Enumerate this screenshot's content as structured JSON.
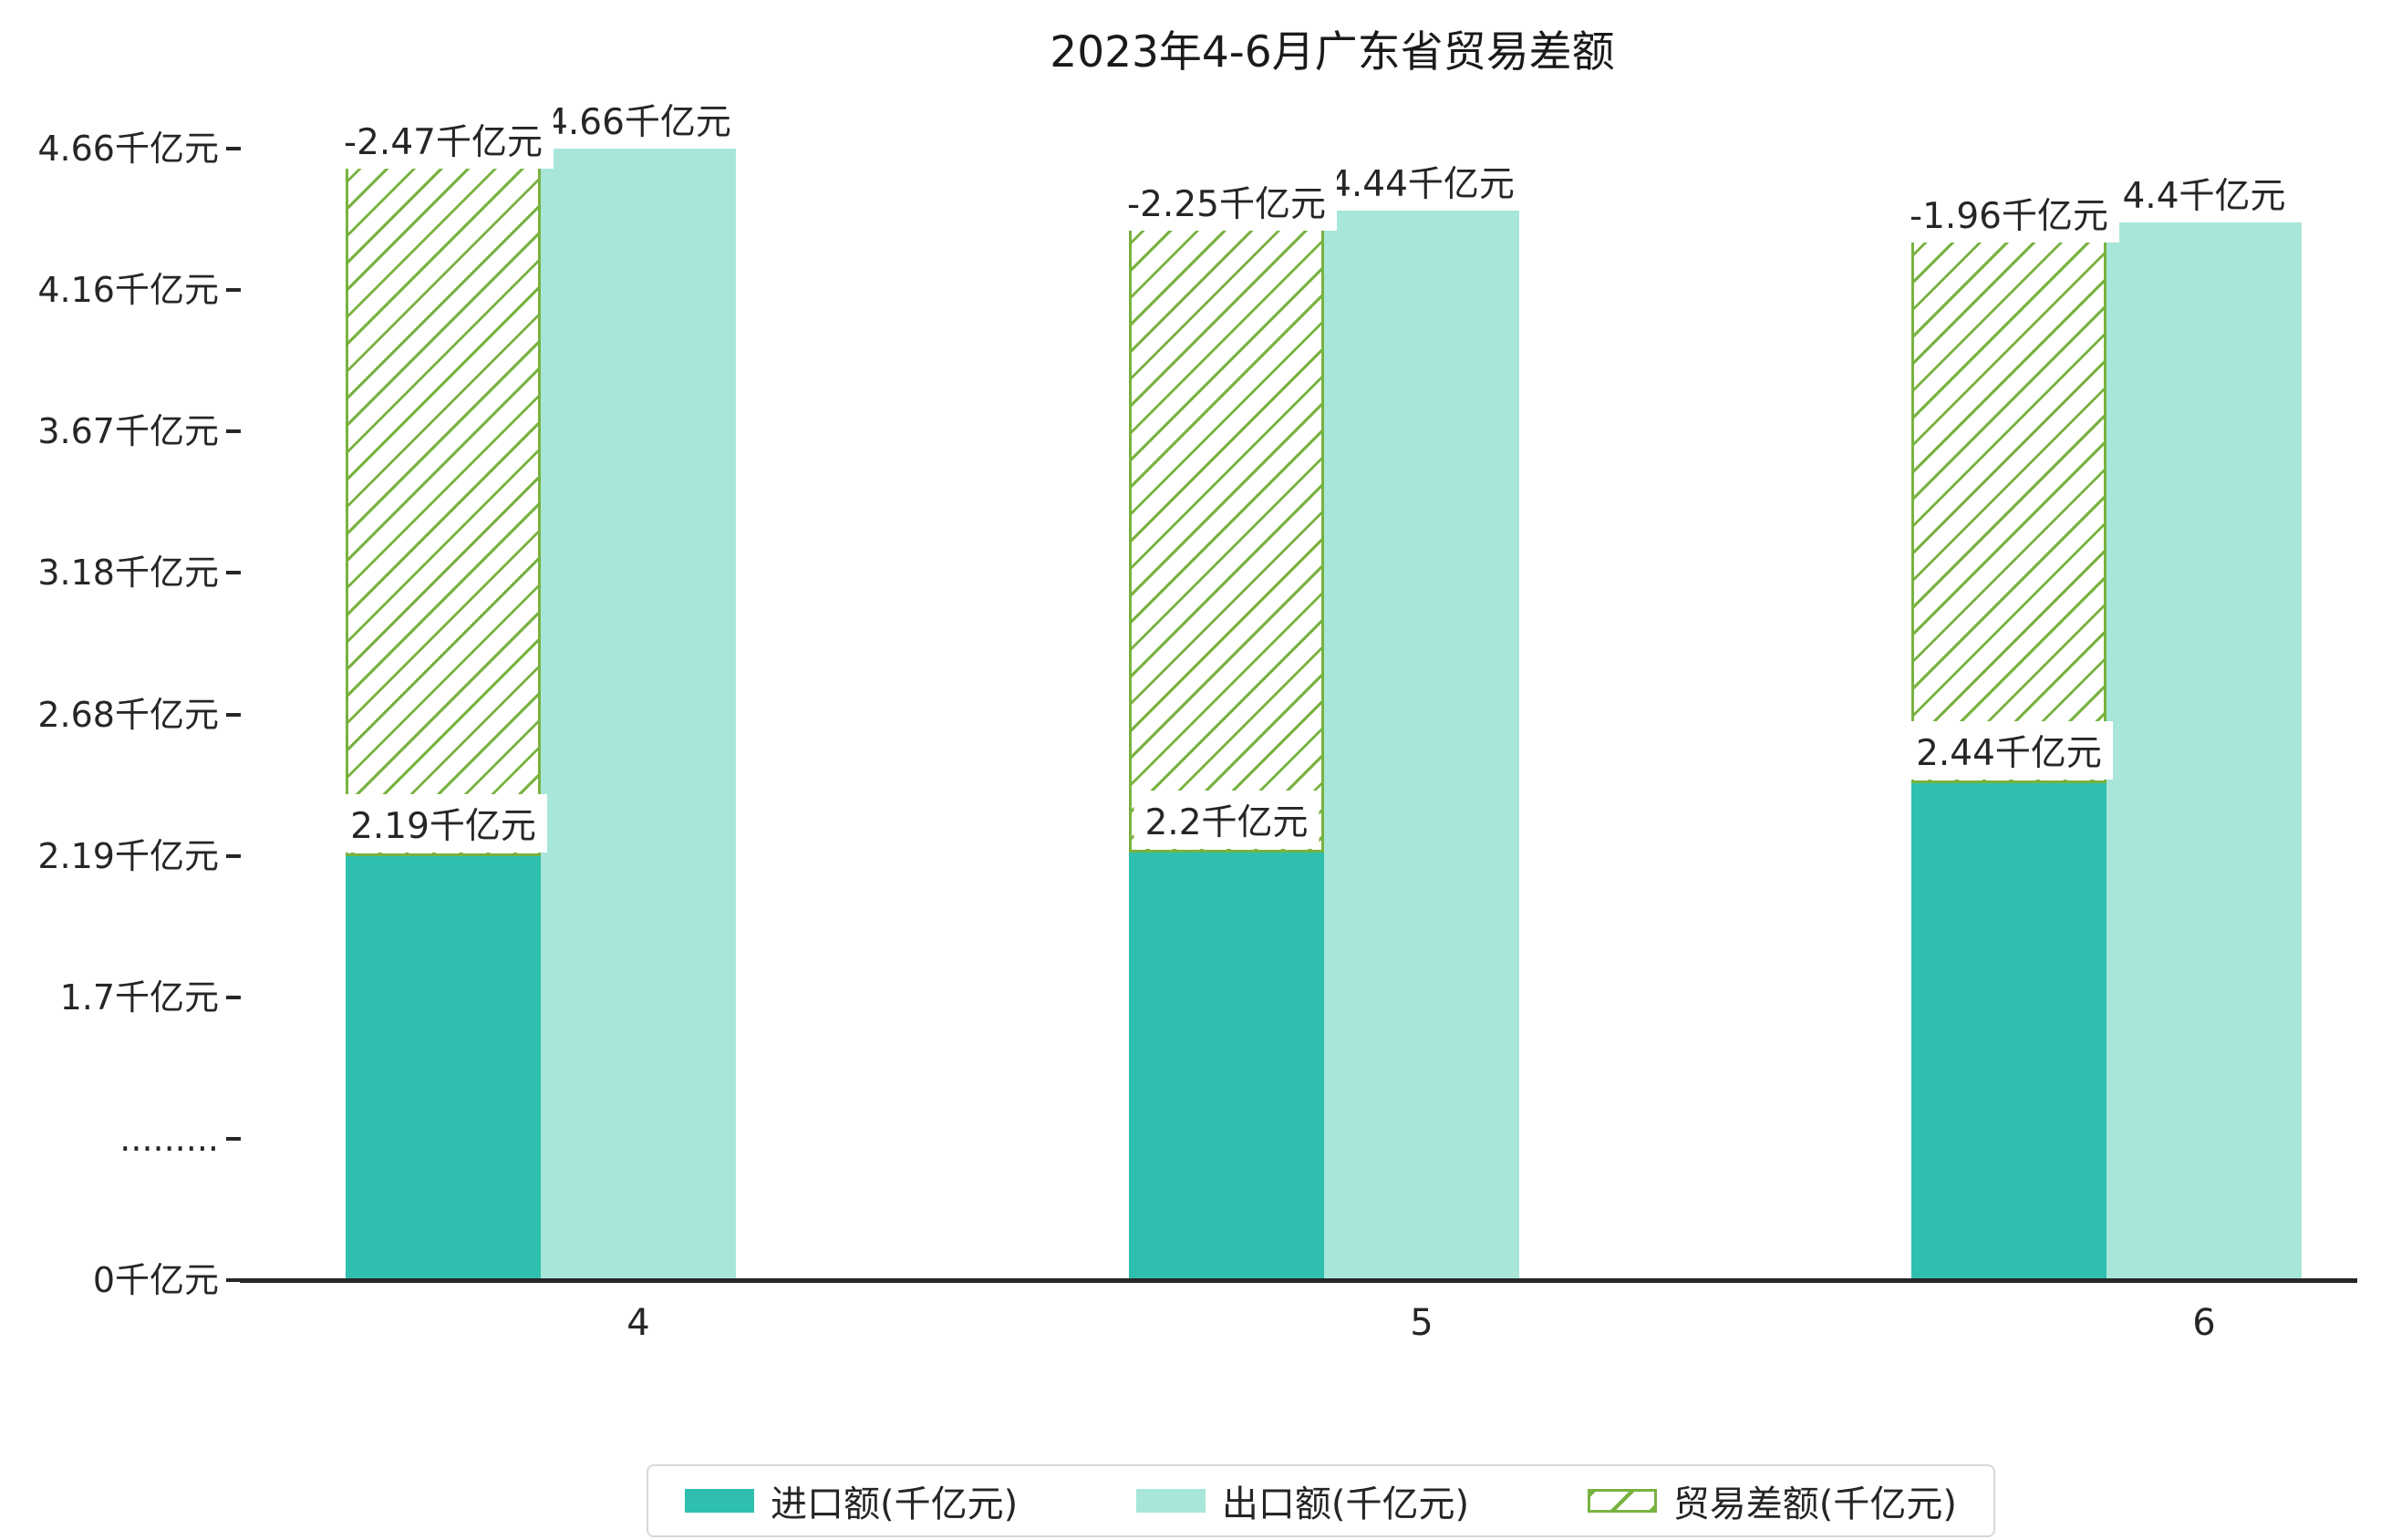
{
  "chart_data": {
    "type": "bar",
    "title": "2023年4-6月广东省贸易差额",
    "categories": [
      "4",
      "5",
      "6"
    ],
    "xlabel": "",
    "ylabel": "",
    "unit": "千亿元",
    "y_ticks": [
      "0千亿元",
      ".........",
      "1.7千亿元",
      "2.19千亿元",
      "2.68千亿元",
      "3.18千亿元",
      "3.67千亿元",
      "4.16千亿元",
      "4.66千亿元"
    ],
    "y_tick_values": [
      0,
      0.85,
      1.7,
      2.19,
      2.68,
      3.18,
      3.67,
      4.16,
      4.66
    ],
    "axis_break_between": [
      "0千亿元",
      "1.7千亿元"
    ],
    "grid": false,
    "legend_position": "bottom",
    "series": [
      {
        "name": "进口额(千亿元)",
        "type": "bar",
        "color": "#2fbfae",
        "values": [
          2.19,
          2.2,
          2.44
        ],
        "labels": [
          "2.19千亿元",
          "2.2千亿元",
          "2.44千亿元"
        ]
      },
      {
        "name": "出口额(千亿元)",
        "type": "bar",
        "color": "#a8e6da",
        "values": [
          4.66,
          4.44,
          4.4
        ],
        "labels": [
          "4.66千亿元",
          "4.44千亿元",
          "4.4千亿元"
        ]
      },
      {
        "name": "贸易差额(千亿元)",
        "type": "floating-bar",
        "hatch": "/",
        "color": "#78b240",
        "values": [
          -2.47,
          -2.25,
          -1.96
        ],
        "labels": [
          "-2.47千亿元",
          "-2.25千亿元",
          "-1.96千亿元"
        ]
      }
    ]
  },
  "colors": {
    "import_bar": "#2fbfae",
    "export_bar": "#a8e6da",
    "balance_hatch": "#78b240",
    "axis": "#262626",
    "background": "#ffffff"
  }
}
